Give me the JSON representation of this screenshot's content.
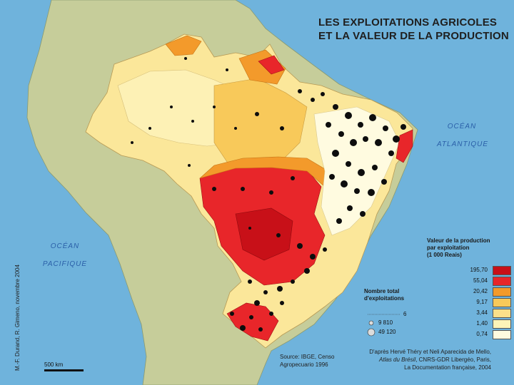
{
  "title": {
    "line1": "LES EXPLOITATIONS AGRICOLES",
    "line2": "ET LA VALEUR DE LA PRODUCTION"
  },
  "oceans": {
    "atlantic": {
      "line1": "OCÉAN",
      "line2": "ATLANTIQUE"
    },
    "pacific": {
      "line1": "OCÉAN",
      "line2": "PACIFIQUE"
    }
  },
  "credit": "M.-F. Durand, R. Gimeno, novembre 2004",
  "scale": {
    "label": "500 km"
  },
  "legend_value": {
    "title_line1": "Valeur de la production",
    "title_line2": "par exploitation",
    "title_line3": "(1 000 Reais)",
    "classes": [
      {
        "label": "195,70",
        "color": "#c81018"
      },
      {
        "label": "55,04",
        "color": "#e8262a"
      },
      {
        "label": "20,42",
        "color": "#f39a2b"
      },
      {
        "label": "9,17",
        "color": "#f8c95a"
      },
      {
        "label": "3,44",
        "color": "#fbe08a"
      },
      {
        "label": "1,40",
        "color": "#fdf4b8"
      },
      {
        "label": "0,74",
        "color": "#fffbe0"
      }
    ]
  },
  "legend_count": {
    "title_line1": "Nombre total",
    "title_line2": "d'exploitations",
    "values": [
      "6",
      "9 810",
      "49 120"
    ]
  },
  "source": {
    "line1": "Source: IBGE, Censo",
    "line2": "Agropecuario 1996"
  },
  "attribution": {
    "line1": "D'après Hervé Théry et Neli Aparecida de Mello,",
    "line2_italic": "Atlas du Brésil",
    "line2_rest": ", CNRS-GDR Libergéo, Paris,",
    "line3": "La Documentation française, 2004"
  },
  "colors": {
    "ocean": "#6fb3dc",
    "land": "#c6cd9a",
    "dot": "#0d0d0d"
  }
}
